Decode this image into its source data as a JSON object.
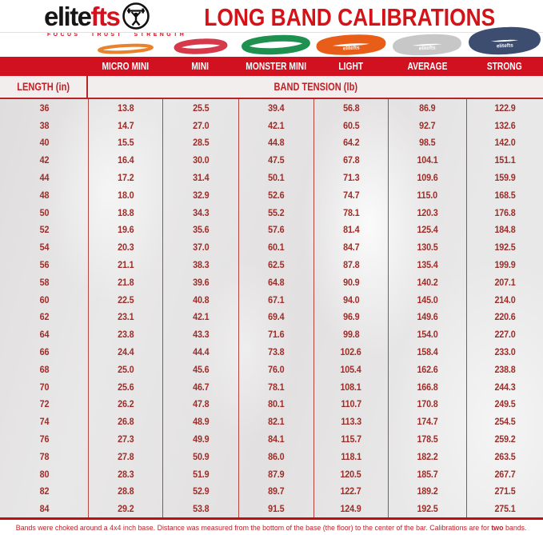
{
  "title": "LONG BAND CALIBRATIONS",
  "brand": {
    "logo_black": "elite",
    "logo_red": "fts",
    "tagline": "FOCUS TRUST STRENGTH"
  },
  "colors": {
    "header_bar_red": "#d11020",
    "title_red": "#d41217",
    "value_red": "#9d2d28",
    "accent_red": "#c01f24"
  },
  "chart_data": {
    "type": "table",
    "title": "LONG BAND CALIBRATIONS",
    "row_header": "LENGTH (in)",
    "group_header": "BAND TENSION (lb)",
    "columns": [
      "MICRO MINI",
      "MINI",
      "MONSTER MINI",
      "LIGHT",
      "AVERAGE",
      "STRONG"
    ],
    "lengths_in": [
      "36",
      "38",
      "40",
      "42",
      "44",
      "48",
      "50",
      "52",
      "54",
      "56",
      "58",
      "60",
      "62",
      "64",
      "66",
      "68",
      "70",
      "72",
      "74",
      "76",
      "78",
      "80",
      "82",
      "84"
    ],
    "series": [
      {
        "name": "MICRO MINI",
        "band_color": "#e8832c",
        "tension_lb": [
          "13.8",
          "14.7",
          "15.5",
          "16.4",
          "17.2",
          "18.0",
          "18.8",
          "19.6",
          "20.3",
          "21.1",
          "21.8",
          "22.5",
          "23.1",
          "23.8",
          "24.4",
          "25.0",
          "25.6",
          "26.2",
          "26.8",
          "27.3",
          "27.8",
          "28.3",
          "28.8",
          "29.2"
        ]
      },
      {
        "name": "MINI",
        "band_color": "#d63a4a",
        "tension_lb": [
          "25.5",
          "27.0",
          "28.5",
          "30.0",
          "31.4",
          "32.9",
          "34.3",
          "35.6",
          "37.0",
          "38.3",
          "39.6",
          "40.8",
          "42.1",
          "43.3",
          "44.4",
          "45.6",
          "46.7",
          "47.8",
          "48.9",
          "49.9",
          "50.9",
          "51.9",
          "52.9",
          "53.8"
        ]
      },
      {
        "name": "MONSTER MINI",
        "band_color": "#1e9150",
        "tension_lb": [
          "39.4",
          "42.1",
          "44.8",
          "47.5",
          "50.1",
          "52.6",
          "55.2",
          "57.6",
          "60.1",
          "62.5",
          "64.8",
          "67.1",
          "69.4",
          "71.6",
          "73.8",
          "76.0",
          "78.1",
          "80.1",
          "82.1",
          "84.1",
          "86.0",
          "87.9",
          "89.7",
          "91.5"
        ]
      },
      {
        "name": "LIGHT",
        "band_color": "#e85d17",
        "band_label": "elitefts",
        "tension_lb": [
          "56.8",
          "60.5",
          "64.2",
          "67.8",
          "71.3",
          "74.7",
          "78.1",
          "81.4",
          "84.7",
          "87.8",
          "90.9",
          "94.0",
          "96.9",
          "99.8",
          "102.6",
          "105.4",
          "108.1",
          "110.7",
          "113.3",
          "115.7",
          "118.1",
          "120.5",
          "122.7",
          "124.9"
        ]
      },
      {
        "name": "AVERAGE",
        "band_color": "#c7c7c7",
        "band_label": "elitefts",
        "tension_lb": [
          "86.9",
          "92.7",
          "98.5",
          "104.1",
          "109.6",
          "115.0",
          "120.3",
          "125.4",
          "130.5",
          "135.4",
          "140.2",
          "145.0",
          "149.6",
          "154.0",
          "158.4",
          "162.6",
          "166.8",
          "170.8",
          "174.7",
          "178.5",
          "182.2",
          "185.7",
          "189.2",
          "192.5"
        ]
      },
      {
        "name": "STRONG",
        "band_color": "#3d4d70",
        "band_label": "elitefts",
        "tension_lb": [
          "122.9",
          "132.6",
          "142.0",
          "151.1",
          "159.9",
          "168.5",
          "176.8",
          "184.8",
          "192.5",
          "199.9",
          "207.1",
          "214.0",
          "220.6",
          "227.0",
          "233.0",
          "238.8",
          "244.3",
          "249.5",
          "254.5",
          "259.2",
          "263.5",
          "267.7",
          "271.5",
          "275.1"
        ]
      }
    ]
  },
  "footer": {
    "note_before": "Bands were choked around a 4x4 inch base. Distance was measured from the bottom of the base (the floor) to the center of the bar. Calibrations are for ",
    "note_bold": "two",
    "note_after": " bands."
  }
}
